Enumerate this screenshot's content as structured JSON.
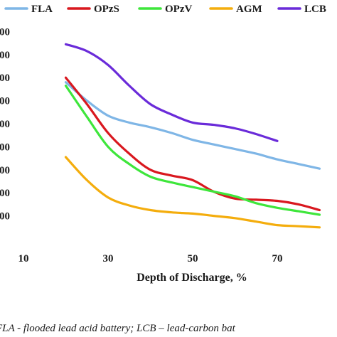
{
  "chart_data": {
    "type": "line",
    "xlabel": "Depth of Discharge, %",
    "x_ticks": [
      "10",
      "30",
      "50",
      "70"
    ],
    "xlim": [
      10,
      83
    ],
    "ylim": [
      0,
      9.5
    ],
    "series": [
      {
        "name": "FLA",
        "color": "#7fb6e6",
        "x": [
          20,
          25,
          30,
          35,
          40,
          45,
          50,
          55,
          60,
          65,
          70,
          75,
          80
        ],
        "y": [
          6.8,
          6.0,
          5.35,
          5.05,
          4.85,
          4.6,
          4.3,
          4.1,
          3.9,
          3.7,
          3.45,
          3.25,
          3.05
        ]
      },
      {
        "name": "OPzS",
        "color": "#d9181f",
        "x": [
          20,
          25,
          30,
          35,
          40,
          45,
          50,
          55,
          60,
          65,
          70,
          75,
          80
        ],
        "y": [
          7.0,
          5.85,
          4.6,
          3.7,
          3.0,
          2.75,
          2.55,
          2.05,
          1.75,
          1.7,
          1.65,
          1.5,
          1.25
        ]
      },
      {
        "name": "OPzV",
        "color": "#3ee63b",
        "x": [
          20,
          25,
          30,
          35,
          40,
          45,
          50,
          55,
          60,
          65,
          70,
          75,
          80
        ],
        "y": [
          6.65,
          5.3,
          4.0,
          3.25,
          2.7,
          2.45,
          2.25,
          2.05,
          1.85,
          1.55,
          1.35,
          1.2,
          1.05
        ]
      },
      {
        "name": "AGM",
        "color": "#f4ad0d",
        "x": [
          20,
          25,
          30,
          35,
          40,
          45,
          50,
          55,
          60,
          65,
          70,
          75,
          80
        ],
        "y": [
          3.55,
          2.55,
          1.8,
          1.45,
          1.25,
          1.15,
          1.1,
          1.0,
          0.9,
          0.75,
          0.6,
          0.55,
          0.5
        ]
      },
      {
        "name": "LCB",
        "color": "#6a2bd9",
        "x": [
          20,
          25,
          30,
          35,
          40,
          45,
          50,
          55,
          60,
          65,
          70
        ],
        "y": [
          8.45,
          8.15,
          7.55,
          6.65,
          5.85,
          5.4,
          5.05,
          4.95,
          4.8,
          4.55,
          4.25
        ]
      }
    ]
  },
  "caption": "FLA - flooded lead acid battery; LCB – lead-carbon bat"
}
